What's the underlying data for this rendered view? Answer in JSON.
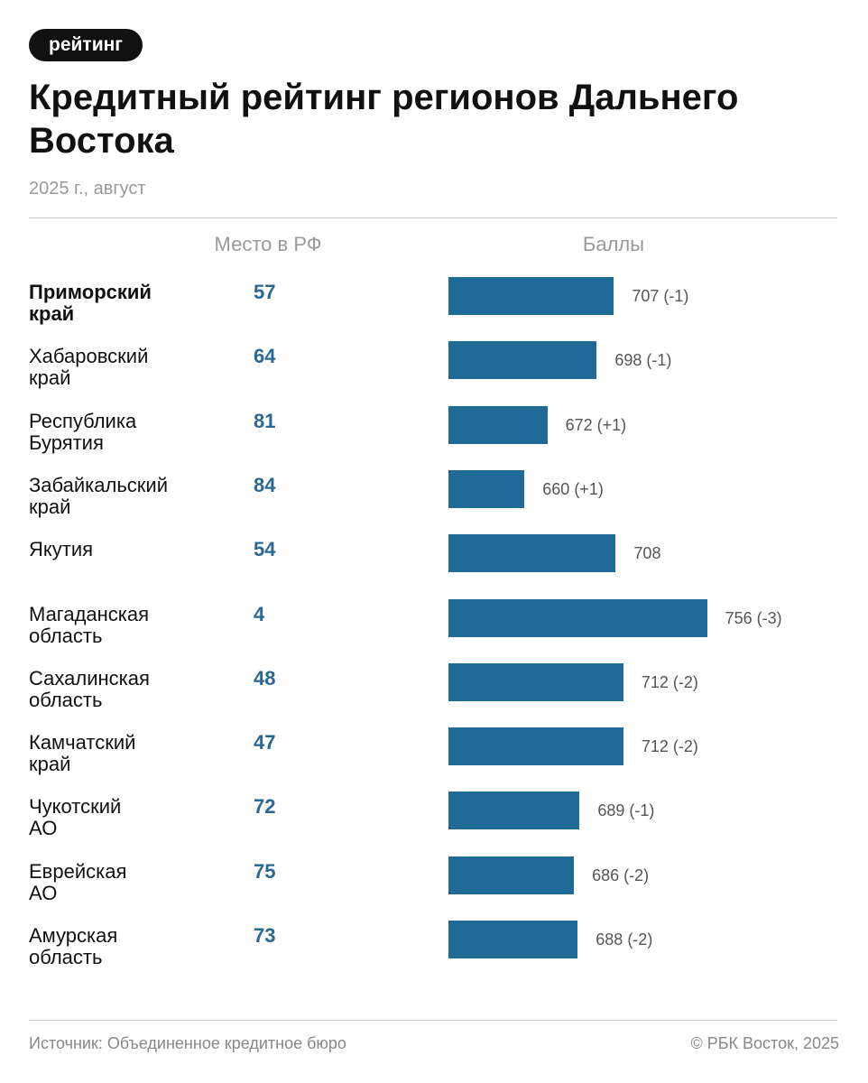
{
  "chart_data": {
    "type": "bar",
    "tag": "рейтинг",
    "title": "Кредитный рейтинг регионов Дальнего Востока",
    "subtitle": "2025 г., август",
    "rank_header": "Место в РФ",
    "value_header": "Баллы",
    "categories": [
      "Приморский\nкрай",
      "Хабаровский\nкрай",
      "Республика\nБурятия",
      "Забайкальский\nкрай",
      "Якутия",
      "Магаданская\nобласть",
      "Сахалинская\nобласть",
      "Камчатский\nкрай",
      "Чукотский\nАО",
      "Еврейская\nАО",
      "Амурская\nобласть"
    ],
    "ranks": [
      57,
      64,
      81,
      84,
      54,
      4,
      48,
      47,
      72,
      75,
      73
    ],
    "values": [
      707,
      698,
      672,
      660,
      708,
      756,
      712,
      712,
      689,
      686,
      688
    ],
    "value_labels": [
      "707 (-1)",
      "698 (-1)",
      "672 (+1)",
      "660 (+1)",
      "708",
      "756 (-3)",
      "712 (-2)",
      "712 (-2)",
      "689 (-1)",
      "686 (-2)",
      "688 (-2)"
    ],
    "color": "#1f6a98",
    "xlim": [
      620,
      760
    ],
    "source": "Источник: Объединенное кредитное бюро",
    "copyright": "© РБК Восток, 2025"
  }
}
